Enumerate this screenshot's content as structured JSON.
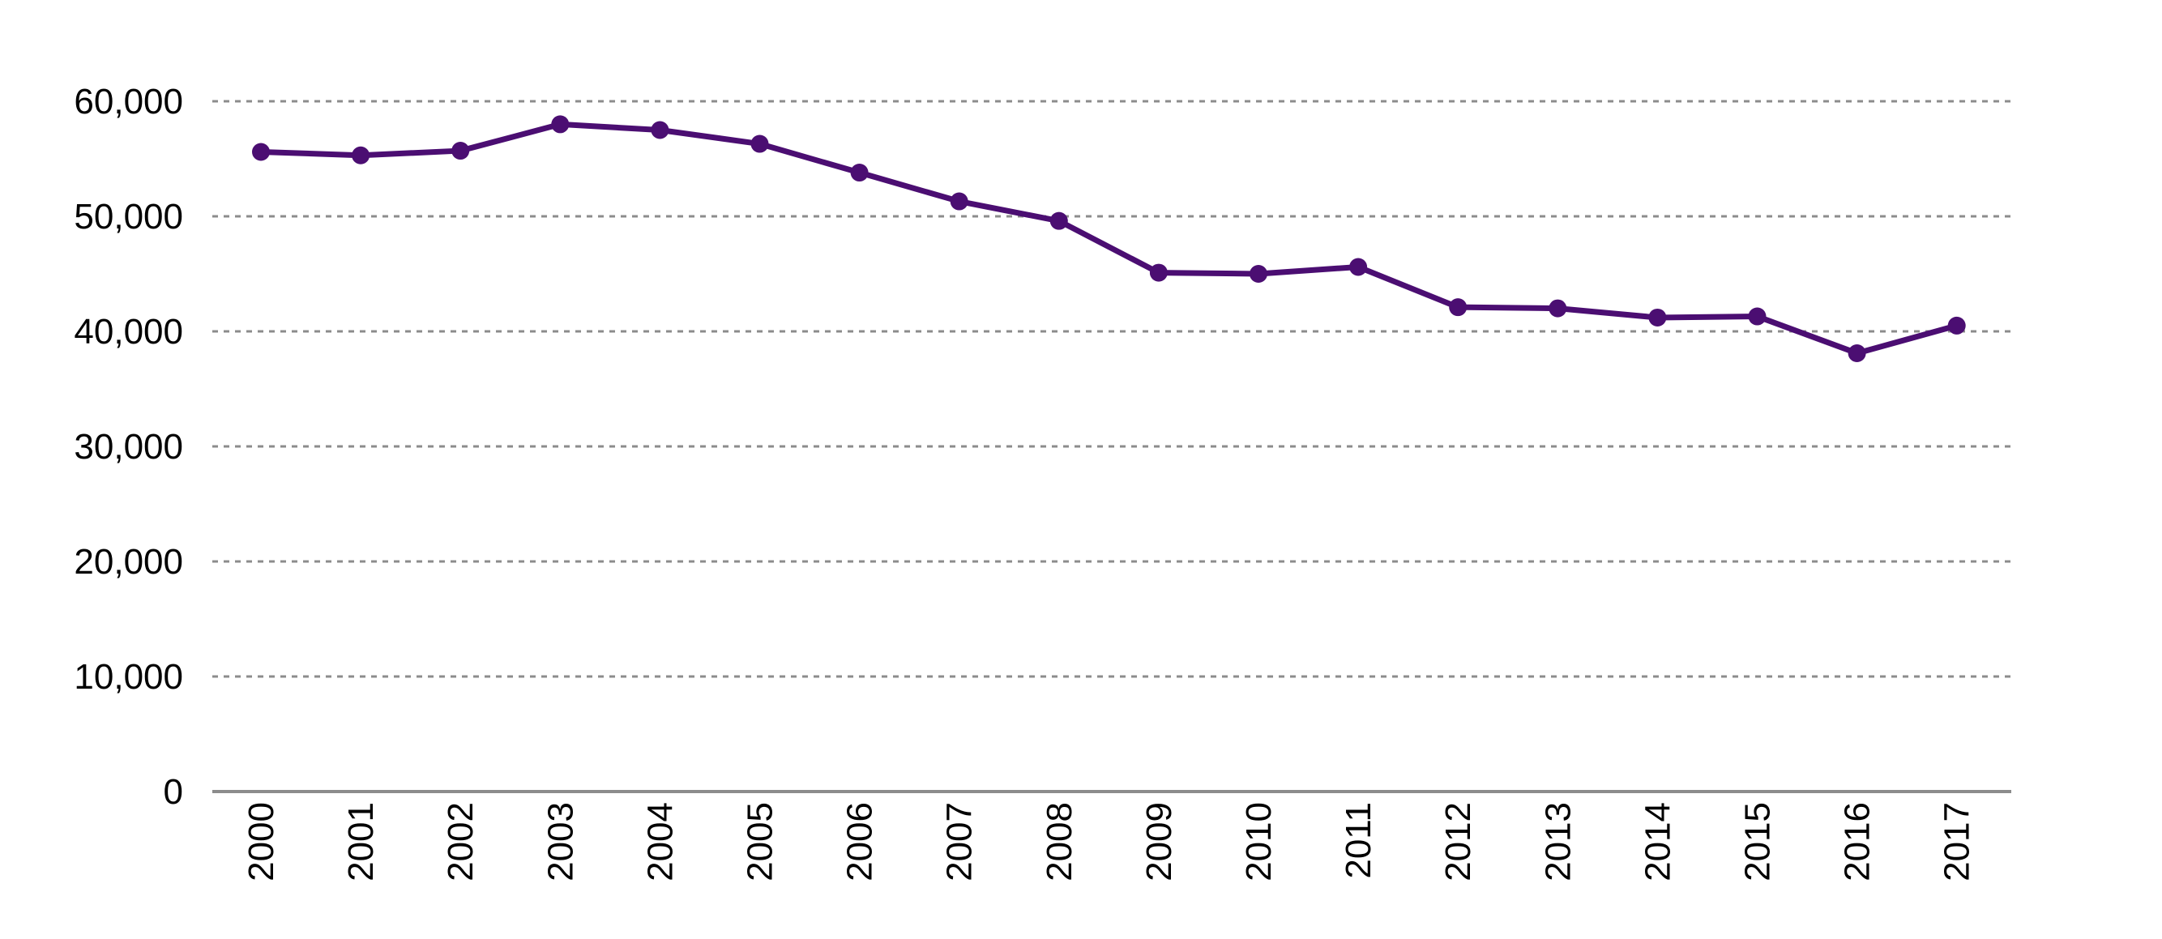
{
  "chart_data": {
    "type": "line",
    "title": "",
    "xlabel": "",
    "ylabel": "",
    "x": [
      "2000",
      "2001",
      "2002",
      "2003",
      "2004",
      "2005",
      "2006",
      "2007",
      "2008",
      "2009",
      "2010",
      "2011",
      "2012",
      "2013",
      "2014",
      "2015",
      "2016",
      "2017"
    ],
    "series": [
      {
        "values": [
          55600,
          55300,
          55700,
          58000,
          57500,
          56300,
          53800,
          51300,
          49600,
          45100,
          45000,
          45600,
          42100,
          42000,
          41200,
          41300,
          38100,
          40500
        ],
        "color": "#4b0e72"
      }
    ],
    "ylim": [
      0,
      60000
    ],
    "yticks": [
      0,
      10000,
      20000,
      30000,
      40000,
      50000,
      60000
    ],
    "ytick_labels": [
      "0",
      "10,000",
      "20,000",
      "30,000",
      "40,000",
      "50,000",
      "60,000"
    ],
    "grid": "horizontal dashed",
    "legend": "none",
    "markers": "filled circles",
    "x_tick_rotation": "vertical"
  }
}
